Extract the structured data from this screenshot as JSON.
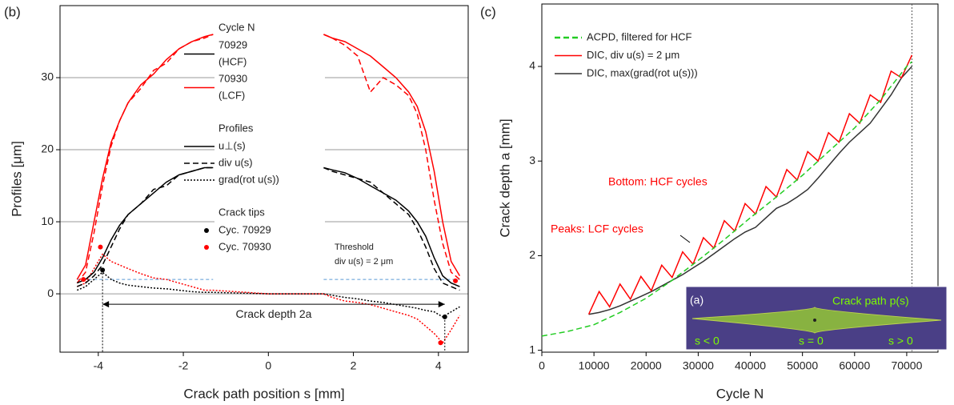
{
  "chart_data": [
    {
      "type": "line",
      "panel": "(b)",
      "xlabel": "Crack path position s [mm]",
      "ylabel": "Profiles [μm]",
      "xlim": [
        -4.9,
        4.7
      ],
      "xticks": [
        -4,
        -2,
        0,
        2,
        4
      ],
      "ylim": [
        -8.1,
        40
      ],
      "yticks": [
        0,
        10,
        20,
        30
      ],
      "grid": "y",
      "x": [
        -4.5,
        -4.3,
        -4.1,
        -3.9,
        -3.7,
        -3.5,
        -3.3,
        -3.0,
        -2.7,
        -2.4,
        -2.1,
        -1.8,
        -1.5,
        -1.3,
        0,
        1.3,
        1.5,
        1.8,
        2.1,
        2.4,
        2.7,
        3.0,
        3.3,
        3.5,
        3.7,
        3.9,
        4.1,
        4.3,
        4.5
      ],
      "series": [
        {
          "color": "#ff0000",
          "dash": "solid",
          "values": [
            2,
            4,
            10,
            16,
            21,
            24,
            26.5,
            29,
            30.5,
            32.5,
            34,
            35,
            35.7,
            36,
            null,
            36,
            35.5,
            35,
            34,
            33,
            31.5,
            30,
            28,
            26,
            22.5,
            17,
            10,
            4.5,
            2.5
          ]
        },
        {
          "color": "#ff0000",
          "dash": "dashed",
          "values": [
            1.5,
            3,
            8.5,
            15,
            20.5,
            24,
            26.5,
            28.5,
            31,
            32,
            34,
            35,
            35.5,
            36,
            null,
            36,
            35.5,
            34.5,
            33,
            28,
            30,
            29,
            27.5,
            25,
            20,
            13,
            7,
            3,
            2
          ]
        },
        {
          "color": "#ff0000",
          "dash": "dotted",
          "values": [
            1,
            1.5,
            3.5,
            5.5,
            4.5,
            4,
            3.5,
            2.8,
            2.2,
            2,
            1.5,
            1,
            0.5,
            0.5,
            0,
            0,
            -0.5,
            -1,
            -1.2,
            -1.5,
            -2,
            -2.5,
            -3,
            -3.5,
            -4.5,
            -5.5,
            -6.8,
            -5,
            -3
          ]
        },
        {
          "color": "#000000",
          "dash": "solid",
          "values": [
            1.5,
            2,
            3,
            5,
            7.5,
            9.5,
            11,
            12.5,
            14,
            15.5,
            16.5,
            17,
            17.5,
            17.5,
            null,
            17.5,
            17.2,
            16.8,
            16,
            15,
            14,
            13,
            11.5,
            10,
            8,
            5,
            2.5,
            1.5,
            1
          ]
        },
        {
          "color": "#000000",
          "dash": "dashed",
          "values": [
            1,
            1.5,
            2.5,
            4,
            6.5,
            9,
            11,
            12.5,
            14.5,
            15,
            16.5,
            17,
            17.5,
            17.5,
            null,
            17.5,
            17,
            16.5,
            16,
            15.5,
            14,
            12.5,
            11,
            9,
            6.5,
            3.5,
            1.5,
            1,
            0.5
          ]
        },
        {
          "color": "#000000",
          "dash": "dotted",
          "values": [
            0.5,
            1,
            2,
            3,
            2,
            1.5,
            1.2,
            1,
            0.8,
            0.7,
            0.5,
            0.3,
            0.2,
            0.2,
            0,
            0,
            -0.2,
            -0.5,
            -0.7,
            -1,
            -1.2,
            -1.5,
            -1.8,
            -2,
            -2.3,
            -2.5,
            -3.2,
            -2.5,
            -1.8
          ]
        }
      ],
      "tips": [
        {
          "color": "#000000",
          "x": [
            -3.9,
            4.15
          ],
          "values": [
            3.3,
            -3.2
          ]
        },
        {
          "color": "#ff0000",
          "x": [
            -3.95,
            4.05,
            -4.35,
            4.4
          ],
          "values": [
            6.5,
            -6.8,
            2,
            1.8
          ]
        }
      ],
      "threshold": 2,
      "threshold_color": "#5b9bd5",
      "annotations": {
        "threshold": [
          "Threshold",
          "div u(s) = 2 μm"
        ],
        "crack_depth": "Crack depth 2a"
      },
      "legend": {
        "groups": [
          {
            "title": "Cycle N",
            "entries": [
              {
                "label": [
                  "70929",
                  "(HCF)"
                ],
                "color": "#000000",
                "dash": "solid"
              },
              {
                "label": [
                  "70930",
                  "(LCF)"
                ],
                "color": "#ff0000",
                "dash": "solid"
              }
            ]
          },
          {
            "title": "Profiles",
            "entries": [
              {
                "label": [
                  "u⊥(s)"
                ],
                "color": "#000000",
                "dash": "solid"
              },
              {
                "label": [
                  "div u(s)"
                ],
                "color": "#000000",
                "dash": "dashed"
              },
              {
                "label": [
                  "grad(rot u(s))"
                ],
                "color": "#000000",
                "dash": "dotted"
              }
            ]
          },
          {
            "title": "Crack tips",
            "entries": [
              {
                "label": [
                  "Cyc. 70929"
                ],
                "color": "#000000",
                "marker": "dot"
              },
              {
                "label": [
                  "Cyc. 70930"
                ],
                "color": "#ff0000",
                "marker": "dot"
              }
            ]
          }
        ]
      }
    },
    {
      "type": "line",
      "panel": "(c)",
      "xlabel": "Cycle N",
      "ylabel": "Crack depth a [mm]",
      "xlim": [
        0,
        76000
      ],
      "xticks": [
        0,
        10000,
        20000,
        30000,
        40000,
        50000,
        60000,
        70000
      ],
      "ylim": [
        0.98,
        4.66
      ],
      "yticks": [
        1,
        2,
        3,
        4
      ],
      "legend_position": "upper left",
      "vline": 71000,
      "series": [
        {
          "name": "ACPD, filtered for HCF",
          "color": "#22cc22",
          "dash": "dashed",
          "x": [
            0,
            5000,
            10000,
            15000,
            20000,
            25000,
            30000,
            35000,
            40000,
            45000,
            50000,
            55000,
            60000,
            65000,
            70000,
            71000
          ],
          "values": [
            1.15,
            1.2,
            1.27,
            1.4,
            1.55,
            1.74,
            1.95,
            2.17,
            2.4,
            2.62,
            2.85,
            3.1,
            3.35,
            3.65,
            4.0,
            4.05
          ]
        },
        {
          "name": "DIC, div u(s) = 2 μm",
          "color": "#ff0000",
          "dash": "solid",
          "x": [
            9000,
            11000,
            13000,
            15000,
            17000,
            19000,
            21000,
            23000,
            25000,
            27000,
            29000,
            31000,
            33000,
            35000,
            37000,
            39000,
            41000,
            43000,
            45000,
            47000,
            49000,
            51000,
            53000,
            55000,
            57000,
            59000,
            61000,
            63000,
            65000,
            67000,
            69000,
            71000
          ],
          "values": [
            1.38,
            1.62,
            1.46,
            1.7,
            1.54,
            1.78,
            1.63,
            1.9,
            1.77,
            2.04,
            1.91,
            2.19,
            2.08,
            2.37,
            2.26,
            2.55,
            2.44,
            2.73,
            2.62,
            2.91,
            2.8,
            3.1,
            3.0,
            3.3,
            3.2,
            3.5,
            3.4,
            3.7,
            3.62,
            3.95,
            3.88,
            4.12
          ]
        },
        {
          "name": "DIC, max(grad(rot u(s)))",
          "color": "#333333",
          "dash": "solid",
          "x": [
            9000,
            11000,
            13000,
            15000,
            17000,
            19000,
            21000,
            23000,
            25000,
            27000,
            29000,
            31000,
            33000,
            35000,
            37000,
            39000,
            41000,
            43000,
            45000,
            47000,
            49000,
            51000,
            53000,
            55000,
            57000,
            59000,
            61000,
            63000,
            65000,
            67000,
            69000,
            71000
          ],
          "values": [
            1.38,
            1.4,
            1.43,
            1.47,
            1.52,
            1.57,
            1.62,
            1.68,
            1.74,
            1.8,
            1.87,
            1.94,
            2.02,
            2.1,
            2.18,
            2.25,
            2.3,
            2.4,
            2.5,
            2.55,
            2.62,
            2.7,
            2.82,
            2.95,
            3.08,
            3.2,
            3.3,
            3.4,
            3.55,
            3.7,
            3.88,
            4.0
          ]
        }
      ],
      "annotations": [
        {
          "text": "Bottom: HCF cycles",
          "color": "#ff0000"
        },
        {
          "text": "Peaks: LCF cycles",
          "color": "#ff0000"
        }
      ],
      "inset": {
        "label": "(a)",
        "title": "Crack path p(s)",
        "regions": [
          "s < 0",
          "s = 0",
          "s > 0"
        ]
      }
    }
  ]
}
